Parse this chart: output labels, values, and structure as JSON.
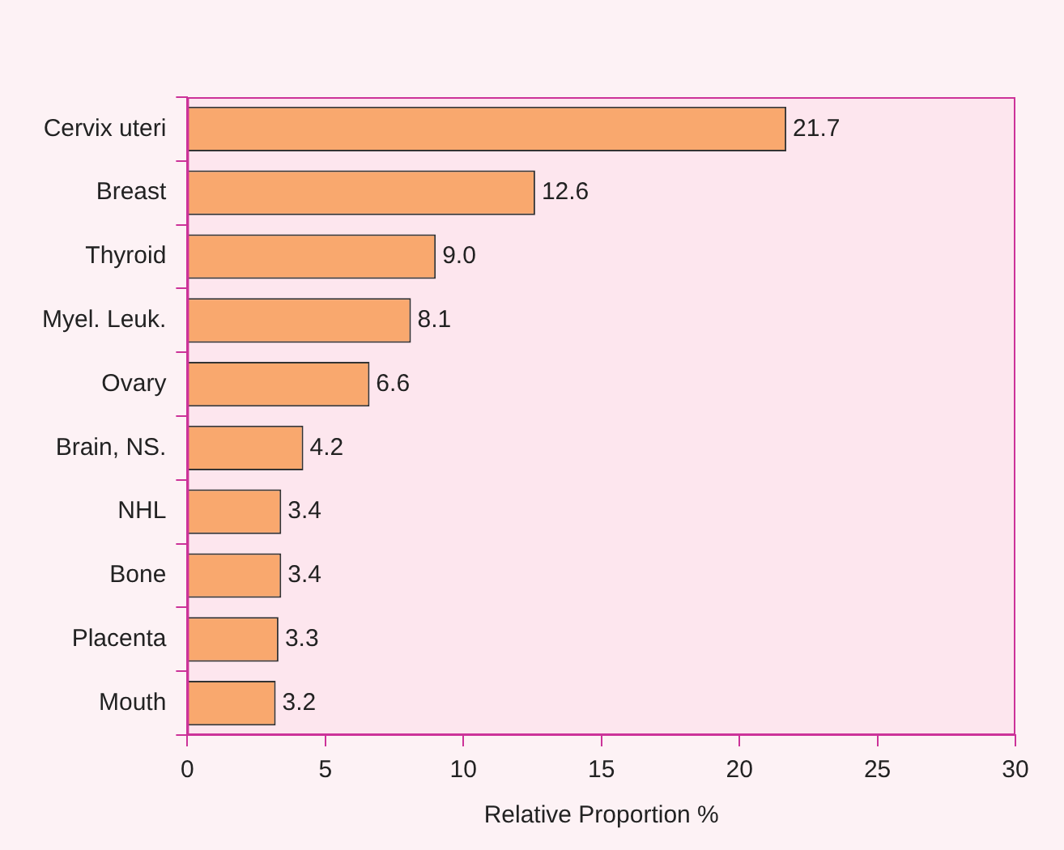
{
  "chart_data": {
    "type": "bar",
    "orientation": "horizontal",
    "xlabel": "Relative Proportion %",
    "categories": [
      "Cervix uteri",
      "Breast",
      "Thyroid",
      "Myel. Leuk.",
      "Ovary",
      "Brain, NS.",
      "NHL",
      "Bone",
      "Placenta",
      "Mouth"
    ],
    "values": [
      21.7,
      12.6,
      9.0,
      8.1,
      6.6,
      4.2,
      3.4,
      3.4,
      3.3,
      3.2
    ],
    "value_labels": [
      "21.7",
      "12.6",
      "9.0",
      "8.1",
      "6.6",
      "4.2",
      "3.4",
      "3.4",
      "3.3",
      "3.2"
    ],
    "color": "#f9a86e",
    "xlim": [
      0,
      30
    ],
    "xticks": [
      0,
      5,
      10,
      15,
      20,
      25,
      30
    ],
    "grid": false
  }
}
